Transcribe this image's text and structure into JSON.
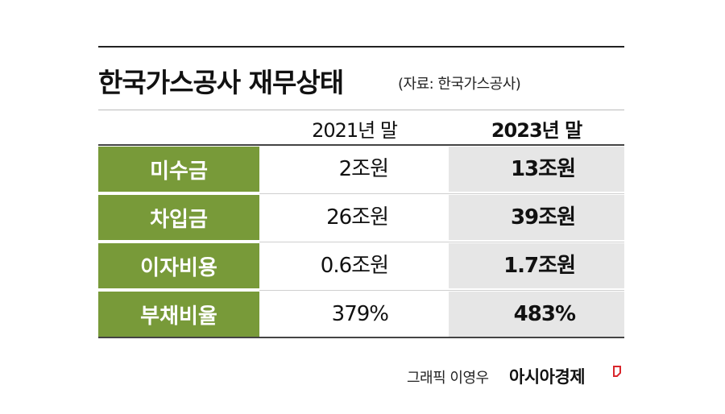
{
  "header": {
    "title": "한국가스공사 재무상태",
    "source": "(자료: 한국가스공사)"
  },
  "table": {
    "columns": [
      "2021년 말",
      "2023년 말"
    ],
    "rows": [
      [
        "미수금",
        "2조원",
        "13조원"
      ],
      [
        "차입금",
        "26조원",
        "39조원"
      ],
      [
        "이자비용",
        "0.6조원",
        "1.7조원"
      ],
      [
        "부채비율",
        "379%",
        "483%"
      ]
    ]
  },
  "footer": {
    "credit": "그래픽 이영우",
    "brand": "아시아경제"
  }
}
